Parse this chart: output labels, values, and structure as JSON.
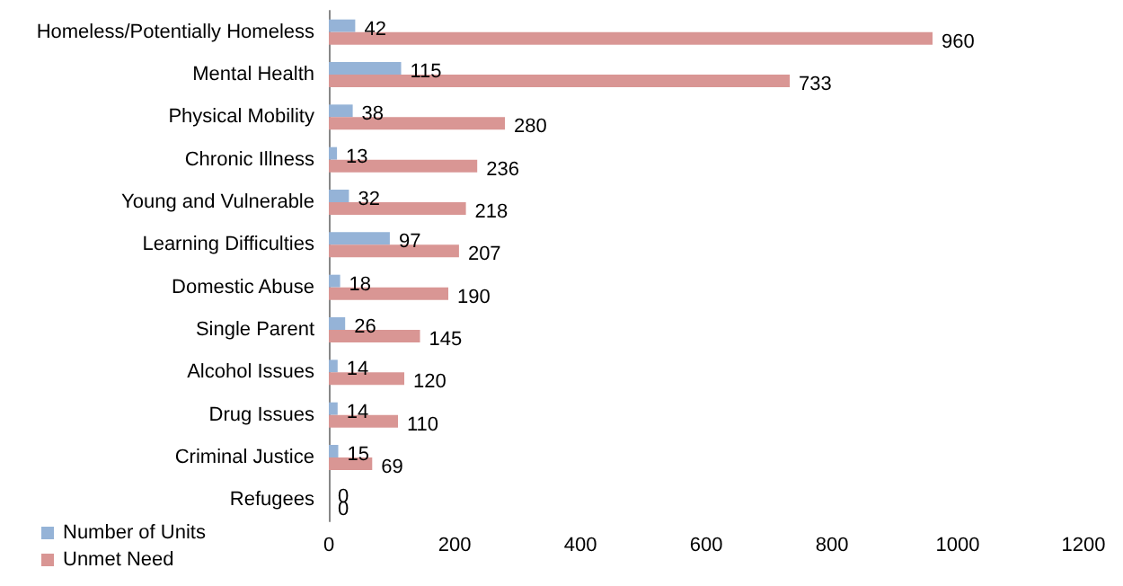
{
  "chart_data": {
    "type": "bar",
    "orientation": "horizontal",
    "categories": [
      "Homeless/Potentially Homeless",
      "Mental Health",
      "Physical Mobility",
      "Chronic Illness",
      "Young and Vulnerable",
      "Learning Difficulties",
      "Domestic Abuse",
      "Single Parent",
      "Alcohol Issues",
      "Drug Issues",
      "Criminal Justice",
      "Refugees"
    ],
    "series": [
      {
        "name": "Number of Units",
        "color": "#95b3d7",
        "values": [
          42,
          115,
          38,
          13,
          32,
          97,
          18,
          26,
          14,
          14,
          15,
          0
        ]
      },
      {
        "name": "Unmet Need",
        "color": "#d99694",
        "values": [
          960,
          733,
          280,
          236,
          218,
          207,
          190,
          145,
          120,
          110,
          69,
          0
        ]
      }
    ],
    "xlim": [
      0,
      1200
    ],
    "xticks": [
      0,
      200,
      400,
      600,
      800,
      1000,
      1200
    ],
    "data_labels": true,
    "grid": false,
    "legend": "bottom left"
  }
}
